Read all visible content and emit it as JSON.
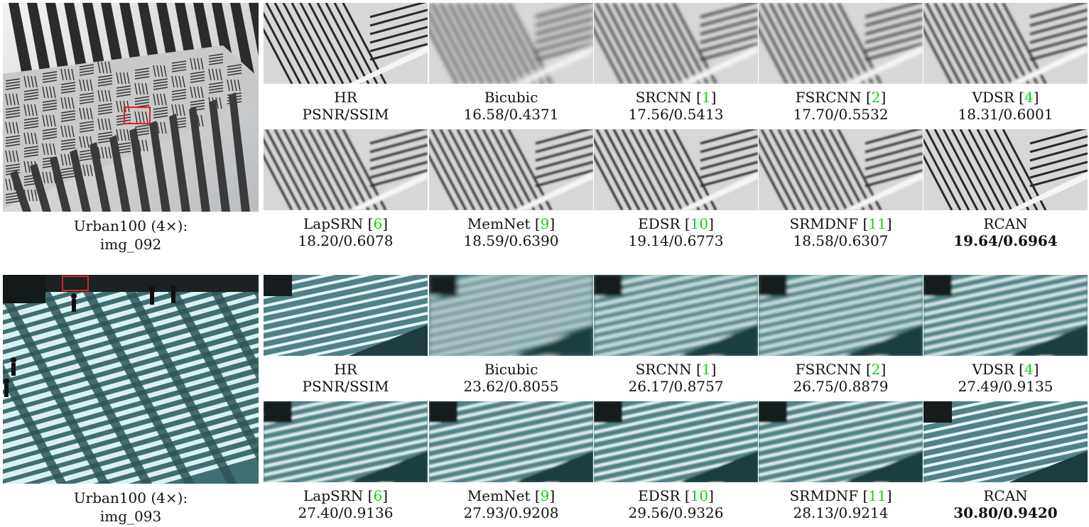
{
  "examples": [
    {
      "dataset_label": "Urban100 (4×):",
      "image_name": "img_092",
      "theme": "gray",
      "methods": [
        {
          "name": "HR",
          "ref": "",
          "score": "PSNR/SSIM"
        },
        {
          "name": "Bicubic",
          "ref": "",
          "score": "16.58/0.4371"
        },
        {
          "name": "SRCNN",
          "ref": "1",
          "score": "17.56/0.5413"
        },
        {
          "name": "FSRCNN",
          "ref": "2",
          "score": "17.70/0.5532"
        },
        {
          "name": "VDSR",
          "ref": "4",
          "score": "18.31/0.6001"
        },
        {
          "name": "LapSRN",
          "ref": "6",
          "score": "18.20/0.6078"
        },
        {
          "name": "MemNet",
          "ref": "9",
          "score": "18.59/0.6390"
        },
        {
          "name": "EDSR",
          "ref": "10",
          "score": "19.14/0.6773"
        },
        {
          "name": "SRMDNF",
          "ref": "11",
          "score": "18.58/0.6307"
        },
        {
          "name": "RCAN",
          "ref": "",
          "score": "19.64/0.6964",
          "best": true
        }
      ]
    },
    {
      "dataset_label": "Urban100 (4×):",
      "image_name": "img_093",
      "theme": "teal",
      "methods": [
        {
          "name": "HR",
          "ref": "",
          "score": "PSNR/SSIM"
        },
        {
          "name": "Bicubic",
          "ref": "",
          "score": "23.62/0.8055"
        },
        {
          "name": "SRCNN",
          "ref": "1",
          "score": "26.17/0.8757"
        },
        {
          "name": "FSRCNN",
          "ref": "2",
          "score": "26.75/0.8879"
        },
        {
          "name": "VDSR",
          "ref": "4",
          "score": "27.49/0.9135"
        },
        {
          "name": "LapSRN",
          "ref": "6",
          "score": "27.40/0.9136"
        },
        {
          "name": "MemNet",
          "ref": "9",
          "score": "27.93/0.9208"
        },
        {
          "name": "EDSR",
          "ref": "10",
          "score": "29.56/0.9326"
        },
        {
          "name": "SRMDNF",
          "ref": "11",
          "score": "28.13/0.9214"
        },
        {
          "name": "RCAN",
          "ref": "",
          "score": "30.80/0.9420",
          "best": true
        }
      ]
    }
  ],
  "colors": {
    "ref_link": "#17d117",
    "crop_box": "#e02020"
  }
}
